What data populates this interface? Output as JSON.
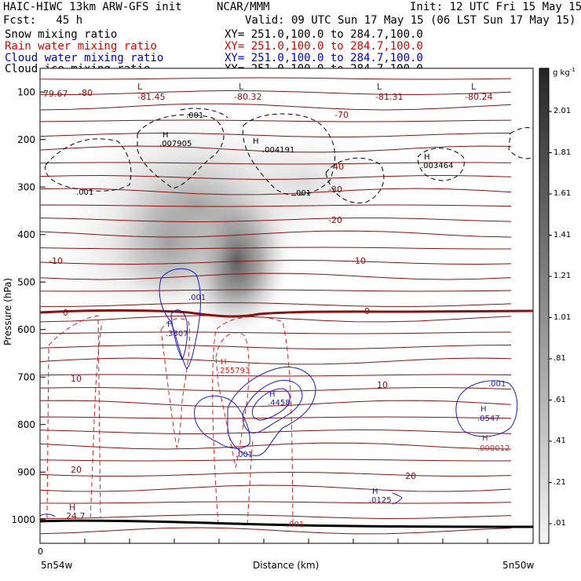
{
  "header": {
    "title": "HAIC-HIWC 13km ARW-GFS init",
    "center": "NCAR/MMM",
    "init": "Init: 12 UTC Fri 15 May 15",
    "fcst": "Fcst:   45 h",
    "valid": "Valid: 09 UTC Sun 17 May 15 (06 LST Sun 17 May 15)"
  },
  "legend": [
    {
      "label": "Snow mixing ratio",
      "xy": "XY= 251.0,100.0 to 284.7,100.0",
      "color": "#000000"
    },
    {
      "label": "Rain water mixing ratio",
      "xy": "XY= 251.0,100.0 to 284.7,100.0",
      "color": "#dd0000"
    },
    {
      "label": "Cloud water mixing ratio",
      "xy": "XY= 251.0,100.0 to 284.7,100.0",
      "color": "#0000cc"
    },
    {
      "label": "Cloud ice mixing ratio",
      "xy": "XY= 251.0,100.0 to 284.7,100.0",
      "color": "#000000"
    }
  ],
  "colorbar": {
    "unit": "g kg",
    "unit_exp": "-1",
    "labels": [
      "2.01",
      "1.81",
      "1.61",
      "1.41",
      "1.21",
      "1.01",
      ".81",
      ".61",
      ".41",
      ".21",
      ".01"
    ]
  },
  "chart_data": {
    "type": "heatmap",
    "ylabel": "Pressure (hPa)",
    "xlabel": "Distance (km)",
    "x_origin_label": "0",
    "x_left_label": "5n54w",
    "x_right_label": "5n50w",
    "yticks": [
      100,
      200,
      300,
      400,
      500,
      600,
      700,
      800,
      900,
      1000
    ],
    "ylim": [
      1050,
      50
    ],
    "temperature_labels": [
      {
        "text": "-81.45",
        "marker": "L"
      },
      {
        "text": "-80.32",
        "marker": "L"
      },
      {
        "text": "-81.31",
        "marker": "L"
      },
      {
        "text": "-80.24",
        "marker": "L"
      },
      {
        "text": "-79.67"
      },
      {
        "text": "-80"
      },
      {
        "text": "-70"
      },
      {
        "text": "-40"
      },
      {
        "text": "-30"
      },
      {
        "text": "-20"
      },
      {
        "text": "-10"
      },
      {
        "text": "-10"
      },
      {
        "text": "0"
      },
      {
        "text": "0"
      },
      {
        "text": "10"
      },
      {
        "text": "10"
      },
      {
        "text": "20"
      },
      {
        "text": "20"
      },
      {
        "text": "24.7",
        "marker": "H"
      }
    ],
    "snow_maxima": [
      {
        "marker": "H",
        "value": ".007905"
      },
      {
        "marker": "H",
        "value": ".004191"
      },
      {
        "marker": "H",
        "value": ".003464"
      }
    ],
    "snow_contour_labels": [
      ".001",
      ".001",
      ".001"
    ],
    "cloud_water_maxima": [
      {
        "marker": "H",
        "value": ".3307"
      },
      {
        "marker": "H",
        "value": ".4458"
      },
      {
        "marker": "H",
        "value": ".0547"
      },
      {
        "marker": "H",
        "value": ".0125"
      }
    ],
    "cloud_water_contour_labels": [
      ".001",
      ".001",
      ".001"
    ],
    "rain_maxima": [
      {
        "marker": "H",
        "value": ".255793"
      },
      {
        "marker": "H",
        "value": ".000012"
      }
    ],
    "rain_contour_labels": [
      ".001"
    ]
  }
}
